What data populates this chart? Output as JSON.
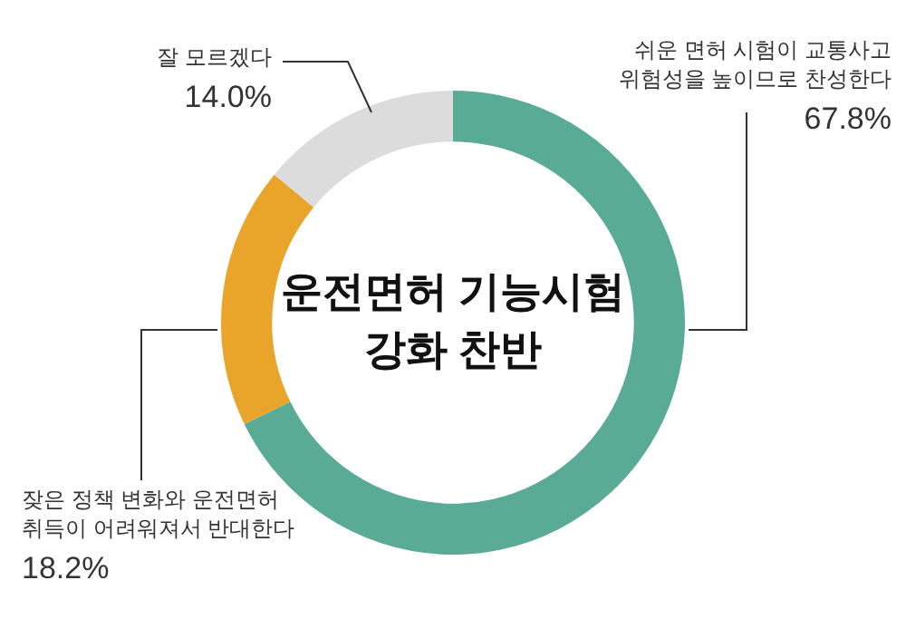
{
  "chart_data": {
    "type": "donut",
    "title": "운전면허 기능시험\n강화 찬반",
    "categories": [
      "쉬운 면허 시험이 교통사고\n위험성을 높이므로 찬성한다",
      "잦은 정책 변화와 운전면허\n취득이 어려워져서 반대한다",
      "잘 모르겠다"
    ],
    "values": [
      67.8,
      18.2,
      14.0
    ],
    "colors": [
      "#5aab96",
      "#e9a42a",
      "#dcdcdc"
    ],
    "value_labels": [
      "67.8%",
      "18.2%",
      "14.0%"
    ],
    "legend": false
  }
}
